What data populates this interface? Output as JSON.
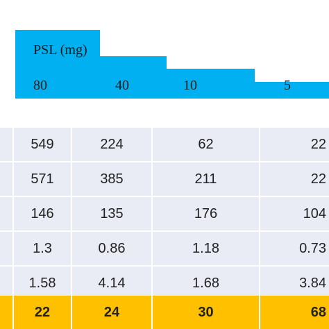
{
  "header": {
    "title": "PSL (mg)",
    "doses": [
      "80",
      "40",
      "10",
      "5"
    ]
  },
  "rows": [
    [
      "549",
      "224",
      "62",
      "22"
    ],
    [
      "571",
      "385",
      "211",
      "22"
    ],
    [
      "146",
      "135",
      "176",
      "104"
    ],
    [
      "1.3",
      "0.86",
      "1.18",
      "0.73"
    ],
    [
      "1.58",
      "4.14",
      "1.68",
      "3.84"
    ]
  ],
  "total_row": [
    "22",
    "24",
    "30",
    "68"
  ],
  "colors": {
    "header_band": "#00b0f0",
    "data_cell": "#e9ebf5",
    "total_cell": "#ffc000"
  }
}
